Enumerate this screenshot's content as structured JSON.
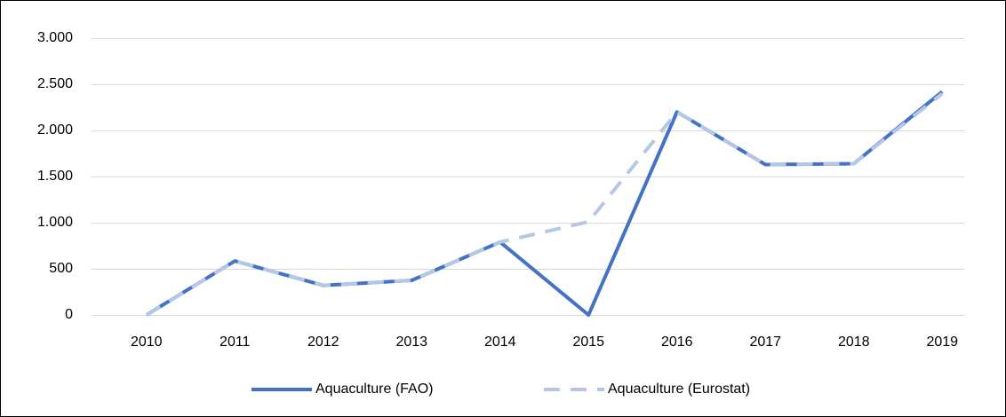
{
  "chart_data": {
    "type": "line",
    "categories": [
      "2010",
      "2011",
      "2012",
      "2013",
      "2014",
      "2015",
      "2016",
      "2017",
      "2018",
      "2019"
    ],
    "series": [
      {
        "name": "Aquaculture (FAO)",
        "color": "#4472c4",
        "dashed": false,
        "values": [
          0,
          585,
          320,
          375,
          790,
          0,
          2200,
          1630,
          1640,
          2420
        ]
      },
      {
        "name": "Aquaculture (Eurostat)",
        "color": "#b4c7e7",
        "dashed": true,
        "values": [
          0,
          585,
          320,
          375,
          790,
          1010,
          2200,
          1630,
          1640,
          2400
        ]
      }
    ],
    "ylim": [
      0,
      3000
    ],
    "yticks": [
      0,
      500,
      {
        "value": 1000,
        "label": "1.000"
      },
      {
        "value": 1500,
        "label": "1.500"
      },
      {
        "value": 2000,
        "label": "2.000"
      },
      {
        "value": 2500,
        "label": "2.500"
      },
      {
        "value": 3000,
        "label": "3.000"
      }
    ],
    "grid": true,
    "legend": "bottom"
  }
}
